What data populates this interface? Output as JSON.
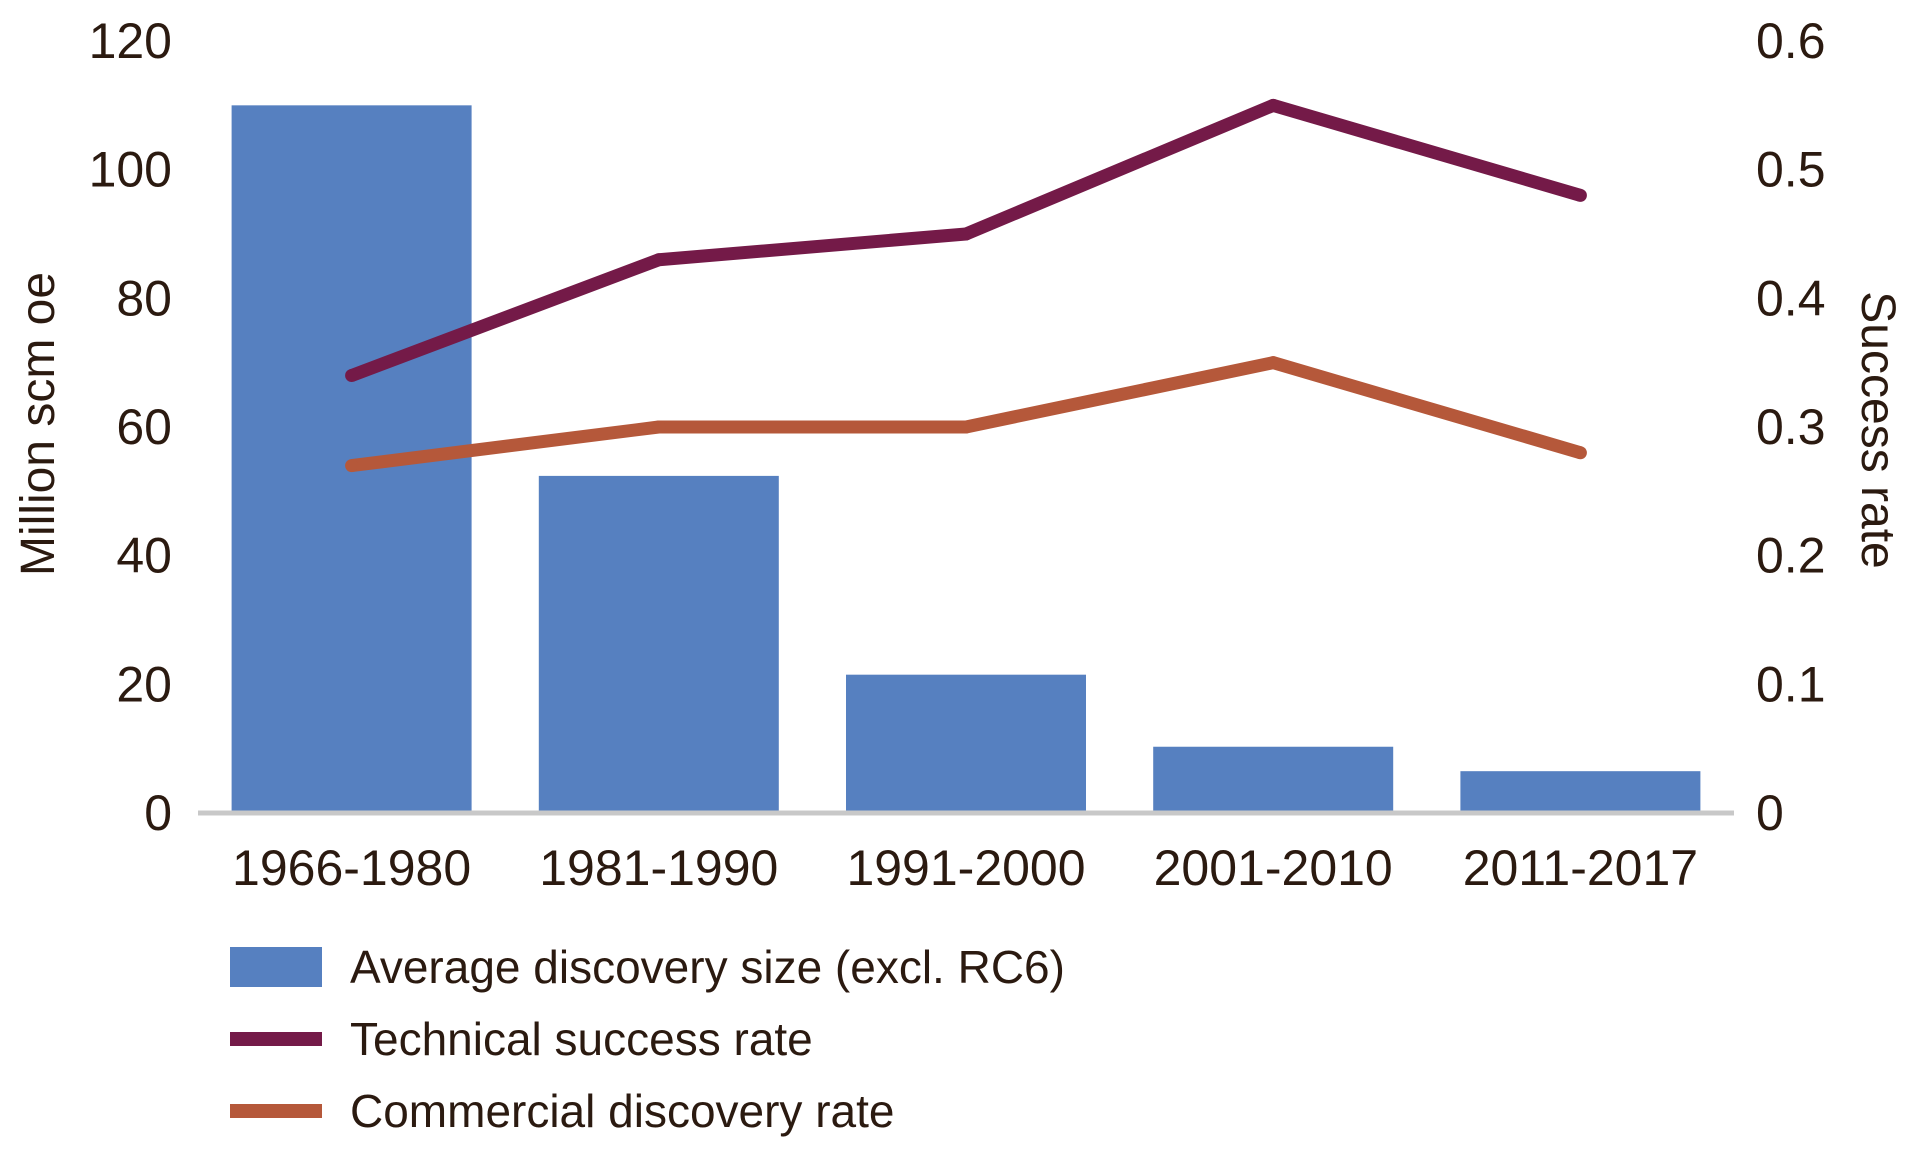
{
  "chart_data": {
    "type": "bar+line",
    "categories": [
      "1966-1980",
      "1981-1990",
      "1991-2000",
      "2001-2010",
      "2011-2017"
    ],
    "ylabel": "Million scm oe",
    "y2label": "Success rate",
    "ylim": [
      0,
      120
    ],
    "y2lim": [
      0,
      0.6
    ],
    "yticks": [
      "0",
      "20",
      "40",
      "60",
      "80",
      "100",
      "120"
    ],
    "y2ticks": [
      "0",
      "0.1",
      "0.2",
      "0.3",
      "0.4",
      "0.5",
      "0.6"
    ],
    "grid": false,
    "legend_position": "bottom-left",
    "series": [
      {
        "name": "Average discovery size (excl. RC6)",
        "kind": "bar",
        "axis": "left",
        "color": "#5680c0",
        "values": [
          110,
          52.4,
          21.5,
          10.3,
          6.5
        ]
      },
      {
        "name": "Technical success rate",
        "kind": "line",
        "axis": "right",
        "color": "#741a48",
        "values": [
          0.34,
          0.43,
          0.45,
          0.55,
          0.48
        ]
      },
      {
        "name": "Commercial discovery rate",
        "kind": "line",
        "axis": "right",
        "color": "#b5583a",
        "values": [
          0.27,
          0.3,
          0.3,
          0.35,
          0.28
        ]
      }
    ]
  }
}
